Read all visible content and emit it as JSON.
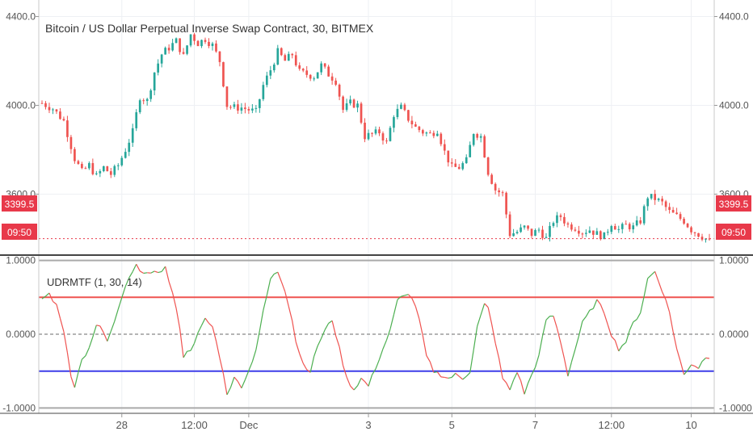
{
  "header": {
    "symbol_title": "Bitcoin / US Dollar Perpetual Inverse Swap Contract, 30, BITMEX"
  },
  "indicator": {
    "label": "UDRMTF (1, 30, 14)"
  },
  "price_badges": {
    "last_price": "3399.5",
    "countdown": "09:50"
  },
  "price_axis": {
    "ticks": [
      {
        "value": 4400,
        "label": "4400.0"
      },
      {
        "value": 4000,
        "label": "4000.0"
      },
      {
        "value": 3600,
        "label": "3600.0"
      }
    ]
  },
  "oscillator_axis": {
    "ticks": [
      {
        "value": 1,
        "label": "1.0000"
      },
      {
        "value": 0,
        "label": "0.0000"
      },
      {
        "value": -1,
        "label": "-1.0000"
      }
    ]
  },
  "time_axis": {
    "labels": [
      {
        "label": "28",
        "index": 22
      },
      {
        "label": "12:00",
        "index": 42
      },
      {
        "label": "Dec",
        "index": 57
      },
      {
        "label": "3",
        "index": 90
      },
      {
        "label": "5",
        "index": 113
      },
      {
        "label": "7",
        "index": 136
      },
      {
        "label": "12:00",
        "index": 157
      },
      {
        "label": "10",
        "index": 179
      }
    ]
  },
  "colors": {
    "up_candle": "#26a69a",
    "down_candle": "#ef5350",
    "price_badge": "#e8394a",
    "upper_level": "#ef5350",
    "lower_level": "#3d3de8",
    "osc_up": "#4caf50",
    "osc_down": "#ef5350",
    "grid": "#eef0f4",
    "divider": "#444444"
  },
  "chart_data": [
    {
      "type": "candlestick",
      "title": "Bitcoin / US Dollar Perpetual Inverse Swap Contract, 30, BITMEX",
      "ylim": [
        3340,
        4460
      ],
      "y_ticks": [
        3600,
        4000,
        4400
      ],
      "grid": true,
      "last_price": 3399.5,
      "close_path": [
        {
          "i": 0,
          "v": 4010
        },
        {
          "i": 3,
          "v": 3985
        },
        {
          "i": 6,
          "v": 3930
        },
        {
          "i": 9,
          "v": 3760
        },
        {
          "i": 11,
          "v": 3700
        },
        {
          "i": 13,
          "v": 3730
        },
        {
          "i": 15,
          "v": 3680
        },
        {
          "i": 17,
          "v": 3720
        },
        {
          "i": 19,
          "v": 3690
        },
        {
          "i": 21,
          "v": 3730
        },
        {
          "i": 23,
          "v": 3800
        },
        {
          "i": 25,
          "v": 3880
        },
        {
          "i": 27,
          "v": 4040
        },
        {
          "i": 29,
          "v": 4020
        },
        {
          "i": 31,
          "v": 4150
        },
        {
          "i": 33,
          "v": 4230
        },
        {
          "i": 35,
          "v": 4260
        },
        {
          "i": 37,
          "v": 4290
        },
        {
          "i": 39,
          "v": 4220
        },
        {
          "i": 41,
          "v": 4320
        },
        {
          "i": 43,
          "v": 4280
        },
        {
          "i": 45,
          "v": 4300
        },
        {
          "i": 47,
          "v": 4270
        },
        {
          "i": 49,
          "v": 4200
        },
        {
          "i": 51,
          "v": 4000
        },
        {
          "i": 53,
          "v": 3990
        },
        {
          "i": 55,
          "v": 3990
        },
        {
          "i": 57,
          "v": 3980
        },
        {
          "i": 59,
          "v": 3970
        },
        {
          "i": 61,
          "v": 4090
        },
        {
          "i": 63,
          "v": 4160
        },
        {
          "i": 65,
          "v": 4240
        },
        {
          "i": 67,
          "v": 4200
        },
        {
          "i": 69,
          "v": 4230
        },
        {
          "i": 71,
          "v": 4150
        },
        {
          "i": 73,
          "v": 4140
        },
        {
          "i": 75,
          "v": 4130
        },
        {
          "i": 77,
          "v": 4180
        },
        {
          "i": 79,
          "v": 4140
        },
        {
          "i": 81,
          "v": 4110
        },
        {
          "i": 83,
          "v": 3980
        },
        {
          "i": 85,
          "v": 4010
        },
        {
          "i": 87,
          "v": 4000
        },
        {
          "i": 89,
          "v": 3860
        },
        {
          "i": 91,
          "v": 3870
        },
        {
          "i": 93,
          "v": 3880
        },
        {
          "i": 95,
          "v": 3830
        },
        {
          "i": 97,
          "v": 3960
        },
        {
          "i": 99,
          "v": 3990
        },
        {
          "i": 101,
          "v": 3940
        },
        {
          "i": 103,
          "v": 3900
        },
        {
          "i": 105,
          "v": 3880
        },
        {
          "i": 107,
          "v": 3870
        },
        {
          "i": 109,
          "v": 3890
        },
        {
          "i": 111,
          "v": 3790
        },
        {
          "i": 113,
          "v": 3720
        },
        {
          "i": 115,
          "v": 3720
        },
        {
          "i": 117,
          "v": 3750
        },
        {
          "i": 119,
          "v": 3880
        },
        {
          "i": 121,
          "v": 3860
        },
        {
          "i": 123,
          "v": 3700
        },
        {
          "i": 125,
          "v": 3620
        },
        {
          "i": 127,
          "v": 3600
        },
        {
          "i": 129,
          "v": 3420
        },
        {
          "i": 131,
          "v": 3430
        },
        {
          "i": 133,
          "v": 3450
        },
        {
          "i": 135,
          "v": 3420
        },
        {
          "i": 137,
          "v": 3440
        },
        {
          "i": 139,
          "v": 3400
        },
        {
          "i": 141,
          "v": 3480
        },
        {
          "i": 143,
          "v": 3500
        },
        {
          "i": 145,
          "v": 3460
        },
        {
          "i": 147,
          "v": 3450
        },
        {
          "i": 149,
          "v": 3430
        },
        {
          "i": 151,
          "v": 3440
        },
        {
          "i": 153,
          "v": 3420
        },
        {
          "i": 155,
          "v": 3410
        },
        {
          "i": 157,
          "v": 3470
        },
        {
          "i": 159,
          "v": 3440
        },
        {
          "i": 161,
          "v": 3460
        },
        {
          "i": 163,
          "v": 3450
        },
        {
          "i": 165,
          "v": 3480
        },
        {
          "i": 167,
          "v": 3590
        },
        {
          "i": 169,
          "v": 3580
        },
        {
          "i": 171,
          "v": 3560
        },
        {
          "i": 173,
          "v": 3520
        },
        {
          "i": 175,
          "v": 3500
        },
        {
          "i": 177,
          "v": 3480
        },
        {
          "i": 179,
          "v": 3440
        },
        {
          "i": 181,
          "v": 3420
        },
        {
          "i": 183,
          "v": 3399.5
        }
      ]
    },
    {
      "type": "line",
      "title": "UDRMTF (1, 30, 14)",
      "ylim": [
        -1.05,
        1.05
      ],
      "y_ticks": [
        -1,
        0,
        1
      ],
      "levels": {
        "upper": 0.5,
        "zero": 0,
        "lower": -0.5,
        "bounds": [
          1,
          -1
        ]
      },
      "series": [
        {
          "values": [
            {
              "i": 0,
              "v": 0.48
            },
            {
              "i": 2,
              "v": 0.55
            },
            {
              "i": 4,
              "v": 0.38
            },
            {
              "i": 6,
              "v": 0.05
            },
            {
              "i": 8,
              "v": -0.55
            },
            {
              "i": 9,
              "v": -0.7
            },
            {
              "i": 11,
              "v": -0.35
            },
            {
              "i": 13,
              "v": -0.2
            },
            {
              "i": 15,
              "v": 0.1
            },
            {
              "i": 16,
              "v": 0.12
            },
            {
              "i": 18,
              "v": -0.1
            },
            {
              "i": 20,
              "v": 0.15
            },
            {
              "i": 22,
              "v": 0.5
            },
            {
              "i": 24,
              "v": 0.75
            },
            {
              "i": 26,
              "v": 0.92
            },
            {
              "i": 28,
              "v": 0.85
            },
            {
              "i": 30,
              "v": 0.8
            },
            {
              "i": 32,
              "v": 0.85
            },
            {
              "i": 34,
              "v": 0.9
            },
            {
              "i": 36,
              "v": 0.55
            },
            {
              "i": 38,
              "v": 0.1
            },
            {
              "i": 39,
              "v": -0.3
            },
            {
              "i": 41,
              "v": -0.2
            },
            {
              "i": 43,
              "v": 0.0
            },
            {
              "i": 45,
              "v": 0.2
            },
            {
              "i": 47,
              "v": 0.1
            },
            {
              "i": 49,
              "v": -0.3
            },
            {
              "i": 51,
              "v": -0.8
            },
            {
              "i": 53,
              "v": -0.6
            },
            {
              "i": 55,
              "v": -0.7
            },
            {
              "i": 57,
              "v": -0.5
            },
            {
              "i": 59,
              "v": -0.2
            },
            {
              "i": 61,
              "v": 0.3
            },
            {
              "i": 63,
              "v": 0.75
            },
            {
              "i": 65,
              "v": 0.85
            },
            {
              "i": 67,
              "v": 0.6
            },
            {
              "i": 69,
              "v": 0.2
            },
            {
              "i": 70,
              "v": -0.1
            },
            {
              "i": 72,
              "v": -0.4
            },
            {
              "i": 74,
              "v": -0.5
            },
            {
              "i": 76,
              "v": -0.15
            },
            {
              "i": 78,
              "v": 0.05
            },
            {
              "i": 80,
              "v": 0.2
            },
            {
              "i": 82,
              "v": -0.2
            },
            {
              "i": 84,
              "v": -0.6
            },
            {
              "i": 86,
              "v": -0.75
            },
            {
              "i": 88,
              "v": -0.6
            },
            {
              "i": 90,
              "v": -0.7
            },
            {
              "i": 92,
              "v": -0.45
            },
            {
              "i": 94,
              "v": -0.2
            },
            {
              "i": 96,
              "v": 0.05
            },
            {
              "i": 98,
              "v": 0.45
            },
            {
              "i": 100,
              "v": 0.55
            },
            {
              "i": 102,
              "v": 0.5
            },
            {
              "i": 104,
              "v": 0.2
            },
            {
              "i": 106,
              "v": -0.3
            },
            {
              "i": 108,
              "v": -0.5
            },
            {
              "i": 110,
              "v": -0.55
            },
            {
              "i": 112,
              "v": -0.6
            },
            {
              "i": 114,
              "v": -0.55
            },
            {
              "i": 116,
              "v": -0.6
            },
            {
              "i": 118,
              "v": -0.5
            },
            {
              "i": 120,
              "v": 0.1
            },
            {
              "i": 122,
              "v": 0.4
            },
            {
              "i": 123,
              "v": 0.35
            },
            {
              "i": 125,
              "v": -0.1
            },
            {
              "i": 127,
              "v": -0.6
            },
            {
              "i": 129,
              "v": -0.75
            },
            {
              "i": 131,
              "v": -0.5
            },
            {
              "i": 133,
              "v": -0.8
            },
            {
              "i": 135,
              "v": -0.55
            },
            {
              "i": 137,
              "v": -0.3
            },
            {
              "i": 139,
              "v": 0.2
            },
            {
              "i": 141,
              "v": 0.25
            },
            {
              "i": 143,
              "v": -0.1
            },
            {
              "i": 145,
              "v": -0.55
            },
            {
              "i": 147,
              "v": -0.2
            },
            {
              "i": 149,
              "v": 0.15
            },
            {
              "i": 151,
              "v": 0.3
            },
            {
              "i": 153,
              "v": 0.45
            },
            {
              "i": 155,
              "v": 0.3
            },
            {
              "i": 157,
              "v": 0.0
            },
            {
              "i": 159,
              "v": -0.2
            },
            {
              "i": 161,
              "v": -0.1
            },
            {
              "i": 163,
              "v": 0.15
            },
            {
              "i": 165,
              "v": 0.3
            },
            {
              "i": 167,
              "v": 0.75
            },
            {
              "i": 169,
              "v": 0.85
            },
            {
              "i": 171,
              "v": 0.6
            },
            {
              "i": 173,
              "v": 0.3
            },
            {
              "i": 175,
              "v": -0.2
            },
            {
              "i": 177,
              "v": -0.55
            },
            {
              "i": 179,
              "v": -0.4
            },
            {
              "i": 181,
              "v": -0.45
            },
            {
              "i": 183,
              "v": -0.3
            }
          ]
        }
      ]
    }
  ]
}
